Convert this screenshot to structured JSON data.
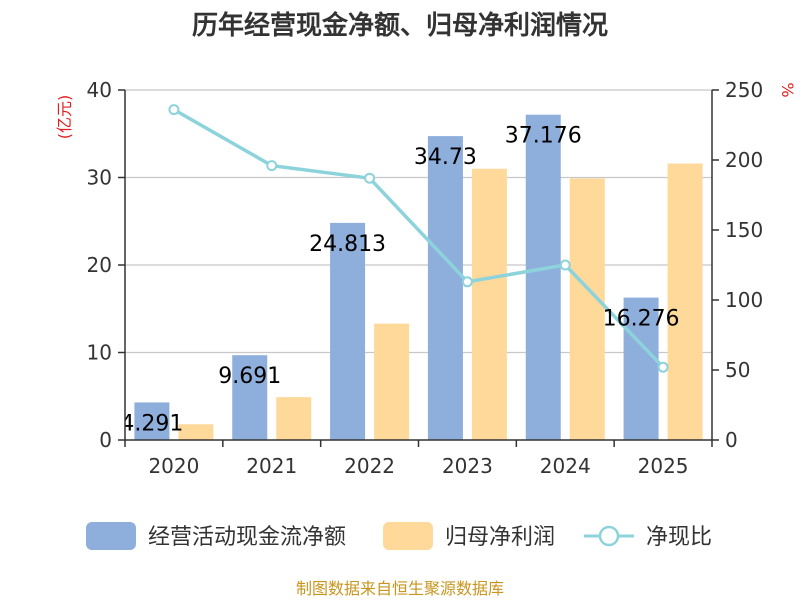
{
  "chart_data": {
    "type": "bar",
    "title": "历年经营现金净额、归母净利润情况",
    "categories": [
      "2020",
      "2021",
      "2022",
      "2023",
      "2024",
      "2025"
    ],
    "series": [
      {
        "name": "经营活动现金流净额",
        "type": "bar",
        "axis": "left",
        "color": "#8eaedb",
        "values": [
          4.291,
          9.691,
          24.813,
          34.73,
          37.176,
          16.276
        ]
      },
      {
        "name": "归母净利润",
        "type": "bar",
        "axis": "left",
        "color": "#ffd99a",
        "values": [
          1.8,
          4.9,
          13.3,
          31.0,
          29.9,
          31.6
        ]
      },
      {
        "name": "净现比",
        "type": "line",
        "axis": "right",
        "color": "#8dd3dc",
        "values": [
          236,
          196,
          187,
          113,
          125,
          52
        ]
      }
    ],
    "data_labels": [
      "4.291",
      "9.691",
      "24.813",
      "34.73",
      "37.176",
      "16.276"
    ],
    "y_left": {
      "label": "(亿元)",
      "ylim": [
        0,
        40
      ],
      "ticks": [
        "0",
        "10",
        "20",
        "30",
        "40"
      ],
      "label_color": "#e02020"
    },
    "y_right": {
      "label": "%",
      "ylim": [
        0,
        250
      ],
      "ticks": [
        "0",
        "50",
        "100",
        "150",
        "200",
        "250"
      ],
      "label_color": "#e02020"
    },
    "grid": true,
    "legend_position": "bottom"
  },
  "source_text": "制图数据来自恒生聚源数据库",
  "source_color": "#c8961e"
}
